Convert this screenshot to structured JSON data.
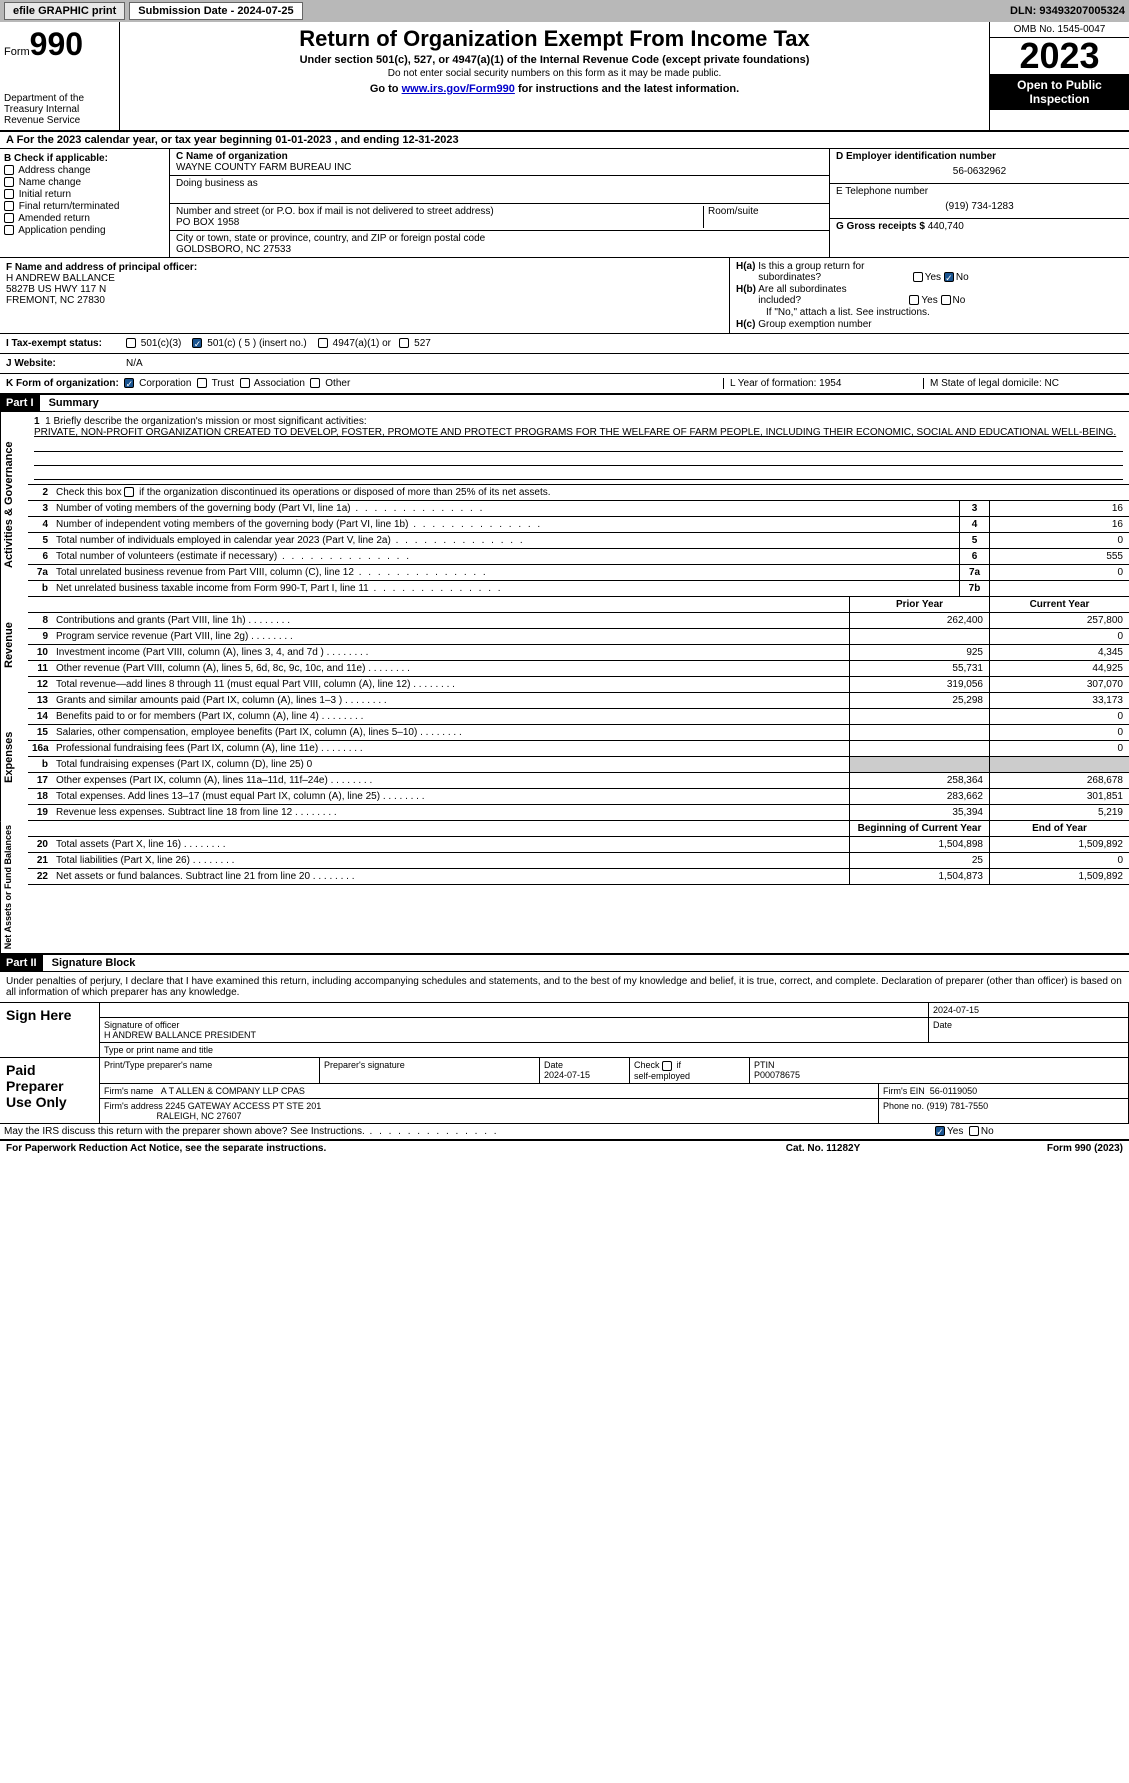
{
  "topbar": {
    "efile_label": "efile GRAPHIC print",
    "submission_label": "Submission Date - 2024-07-25",
    "dln_label": "DLN: 93493207005324"
  },
  "header": {
    "form_label": "Form",
    "form_num": "990",
    "dept": "Department of the Treasury\nInternal Revenue Service",
    "title": "Return of Organization Exempt From Income Tax",
    "sub": "Under section 501(c), 527, or 4947(a)(1) of the Internal Revenue Code (except private foundations)",
    "sub2": "Do not enter social security numbers on this form as it may be made public.",
    "goto_pre": "Go to ",
    "goto_link": "www.irs.gov/Form990",
    "goto_post": " for instructions and the latest information.",
    "omb": "OMB No. 1545-0047",
    "year": "2023",
    "inspect": "Open to Public Inspection"
  },
  "rowA": "A  For the 2023 calendar year, or tax year beginning 01-01-2023   , and ending 12-31-2023",
  "boxB": {
    "title": "B Check if applicable:",
    "opts": [
      "Address change",
      "Name change",
      "Initial return",
      "Final return/terminated",
      "Amended return",
      "Application pending"
    ]
  },
  "boxC": {
    "name_label": "C Name of organization",
    "name": "WAYNE COUNTY FARM BUREAU INC",
    "dba_label": "Doing business as",
    "street_label": "Number and street (or P.O. box if mail is not delivered to street address)",
    "street": "PO BOX 1958",
    "room_label": "Room/suite",
    "city_label": "City or town, state or province, country, and ZIP or foreign postal code",
    "city": "GOLDSBORO, NC  27533"
  },
  "boxD": {
    "ein_label": "D Employer identification number",
    "ein": "56-0632962",
    "phone_label": "E Telephone number",
    "phone": "(919) 734-1283",
    "gross_label": "G Gross receipts $",
    "gross": "440,740"
  },
  "boxF": {
    "label": "F  Name and address of principal officer:",
    "name": "H ANDREW BALLANCE",
    "addr1": "5827B US HWY 117 N",
    "addr2": "FREMONT, NC  27830"
  },
  "boxH": {
    "a_label": "H(a)  Is this a group return for subordinates?",
    "b_label": "H(b)  Are all subordinates included?",
    "b_note": "If \"No,\" attach a list. See instructions.",
    "c_label": "H(c)  Group exemption number",
    "yes": "Yes",
    "no": "No"
  },
  "rowI": {
    "label": "I    Tax-exempt status:",
    "opt1": "501(c)(3)",
    "opt2": "501(c) ( 5 ) (insert no.)",
    "opt3": "4947(a)(1) or",
    "opt4": "527"
  },
  "rowJ": {
    "label": "J    Website:",
    "val": "N/A"
  },
  "rowK": {
    "label": "K Form of organization:",
    "opts": [
      "Corporation",
      "Trust",
      "Association",
      "Other"
    ]
  },
  "rowL": {
    "label": "L Year of formation: 1954"
  },
  "rowM": {
    "label": "M State of legal domicile: NC"
  },
  "part1": {
    "header": "Part I",
    "title": "Summary",
    "mission_label": "1   Briefly describe the organization's mission or most significant activities:",
    "mission": "PRIVATE, NON-PROFIT ORGANIZATION CREATED TO DEVELOP, FOSTER, PROMOTE AND PROTECT PROGRAMS FOR THE WELFARE OF FARM PEOPLE, INCLUDING THEIR ECONOMIC, SOCIAL AND EDUCATIONAL WELL-BEING.",
    "line2": "Check this box     if the organization discontinued its operations or disposed of more than 25% of its net assets.",
    "gov_tab": "Activities & Governance",
    "rev_tab": "Revenue",
    "exp_tab": "Expenses",
    "net_tab": "Net Assets or Fund Balances",
    "prior_year": "Prior Year",
    "current_year": "Current Year",
    "begin_year": "Beginning of Current Year",
    "end_year": "End of Year",
    "lines_gov": [
      {
        "n": "3",
        "t": "Number of voting members of the governing body (Part VI, line 1a)",
        "box": "3",
        "v": "16"
      },
      {
        "n": "4",
        "t": "Number of independent voting members of the governing body (Part VI, line 1b)",
        "box": "4",
        "v": "16"
      },
      {
        "n": "5",
        "t": "Total number of individuals employed in calendar year 2023 (Part V, line 2a)",
        "box": "5",
        "v": "0"
      },
      {
        "n": "6",
        "t": "Total number of volunteers (estimate if necessary)",
        "box": "6",
        "v": "555"
      },
      {
        "n": "7a",
        "t": "Total unrelated business revenue from Part VIII, column (C), line 12",
        "box": "7a",
        "v": "0"
      },
      {
        "n": "b",
        "t": "Net unrelated business taxable income from Form 990-T, Part I, line 11",
        "box": "7b",
        "v": ""
      }
    ],
    "lines_rev": [
      {
        "n": "8",
        "t": "Contributions and grants (Part VIII, line 1h)",
        "py": "262,400",
        "cy": "257,800"
      },
      {
        "n": "9",
        "t": "Program service revenue (Part VIII, line 2g)",
        "py": "",
        "cy": "0"
      },
      {
        "n": "10",
        "t": "Investment income (Part VIII, column (A), lines 3, 4, and 7d )",
        "py": "925",
        "cy": "4,345"
      },
      {
        "n": "11",
        "t": "Other revenue (Part VIII, column (A), lines 5, 6d, 8c, 9c, 10c, and 11e)",
        "py": "55,731",
        "cy": "44,925"
      },
      {
        "n": "12",
        "t": "Total revenue—add lines 8 through 11 (must equal Part VIII, column (A), line 12)",
        "py": "319,056",
        "cy": "307,070"
      }
    ],
    "lines_exp": [
      {
        "n": "13",
        "t": "Grants and similar amounts paid (Part IX, column (A), lines 1–3 )",
        "py": "25,298",
        "cy": "33,173"
      },
      {
        "n": "14",
        "t": "Benefits paid to or for members (Part IX, column (A), line 4)",
        "py": "",
        "cy": "0"
      },
      {
        "n": "15",
        "t": "Salaries, other compensation, employee benefits (Part IX, column (A), lines 5–10)",
        "py": "",
        "cy": "0"
      },
      {
        "n": "16a",
        "t": "Professional fundraising fees (Part IX, column (A), line 11e)",
        "py": "",
        "cy": "0"
      },
      {
        "n": "b",
        "t": "Total fundraising expenses (Part IX, column (D), line 25) 0",
        "shaded": true
      },
      {
        "n": "17",
        "t": "Other expenses (Part IX, column (A), lines 11a–11d, 11f–24e)",
        "py": "258,364",
        "cy": "268,678"
      },
      {
        "n": "18",
        "t": "Total expenses. Add lines 13–17 (must equal Part IX, column (A), line 25)",
        "py": "283,662",
        "cy": "301,851"
      },
      {
        "n": "19",
        "t": "Revenue less expenses. Subtract line 18 from line 12",
        "py": "35,394",
        "cy": "5,219"
      }
    ],
    "lines_net": [
      {
        "n": "20",
        "t": "Total assets (Part X, line 16)",
        "py": "1,504,898",
        "cy": "1,509,892"
      },
      {
        "n": "21",
        "t": "Total liabilities (Part X, line 26)",
        "py": "25",
        "cy": "0"
      },
      {
        "n": "22",
        "t": "Net assets or fund balances. Subtract line 21 from line 20",
        "py": "1,504,873",
        "cy": "1,509,892"
      }
    ]
  },
  "part2": {
    "header": "Part II",
    "title": "Signature Block",
    "declare": "Under penalties of perjury, I declare that I have examined this return, including accompanying schedules and statements, and to the best of my knowledge and belief, it is true, correct, and complete. Declaration of preparer (other than officer) is based on all information of which preparer has any knowledge.",
    "sign_here": "Sign Here",
    "sig_officer_label": "Signature of officer",
    "sig_officer": "H ANDREW BALLANCE  PRESIDENT",
    "sig_type_label": "Type or print name and title",
    "sig_date": "2024-07-15",
    "date_label": "Date",
    "paid_label": "Paid Preparer Use Only",
    "prep_name_label": "Print/Type preparer's name",
    "prep_sig_label": "Preparer's signature",
    "prep_date": "2024-07-15",
    "check_self": "Check     if self-employed",
    "ptin_label": "PTIN",
    "ptin": "P00078675",
    "firm_name_label": "Firm's name",
    "firm_name": "A T ALLEN & COMPANY LLP CPAS",
    "firm_ein_label": "Firm's EIN",
    "firm_ein": "56-0119050",
    "firm_addr_label": "Firm's address",
    "firm_addr": "2245 GATEWAY ACCESS PT STE 201",
    "firm_city": "RALEIGH, NC  27607",
    "firm_phone_label": "Phone no.",
    "firm_phone": "(919) 781-7550",
    "discuss": "May the IRS discuss this return with the preparer shown above? See Instructions.",
    "yes": "Yes",
    "no": "No"
  },
  "footer": {
    "left": "For Paperwork Reduction Act Notice, see the separate instructions.",
    "center": "Cat. No. 11282Y",
    "right": "Form 990 (2023)"
  },
  "colors": {
    "topbar_bg": "#b8b8b8",
    "checked": "#1a5490",
    "link": "#0000cc"
  }
}
